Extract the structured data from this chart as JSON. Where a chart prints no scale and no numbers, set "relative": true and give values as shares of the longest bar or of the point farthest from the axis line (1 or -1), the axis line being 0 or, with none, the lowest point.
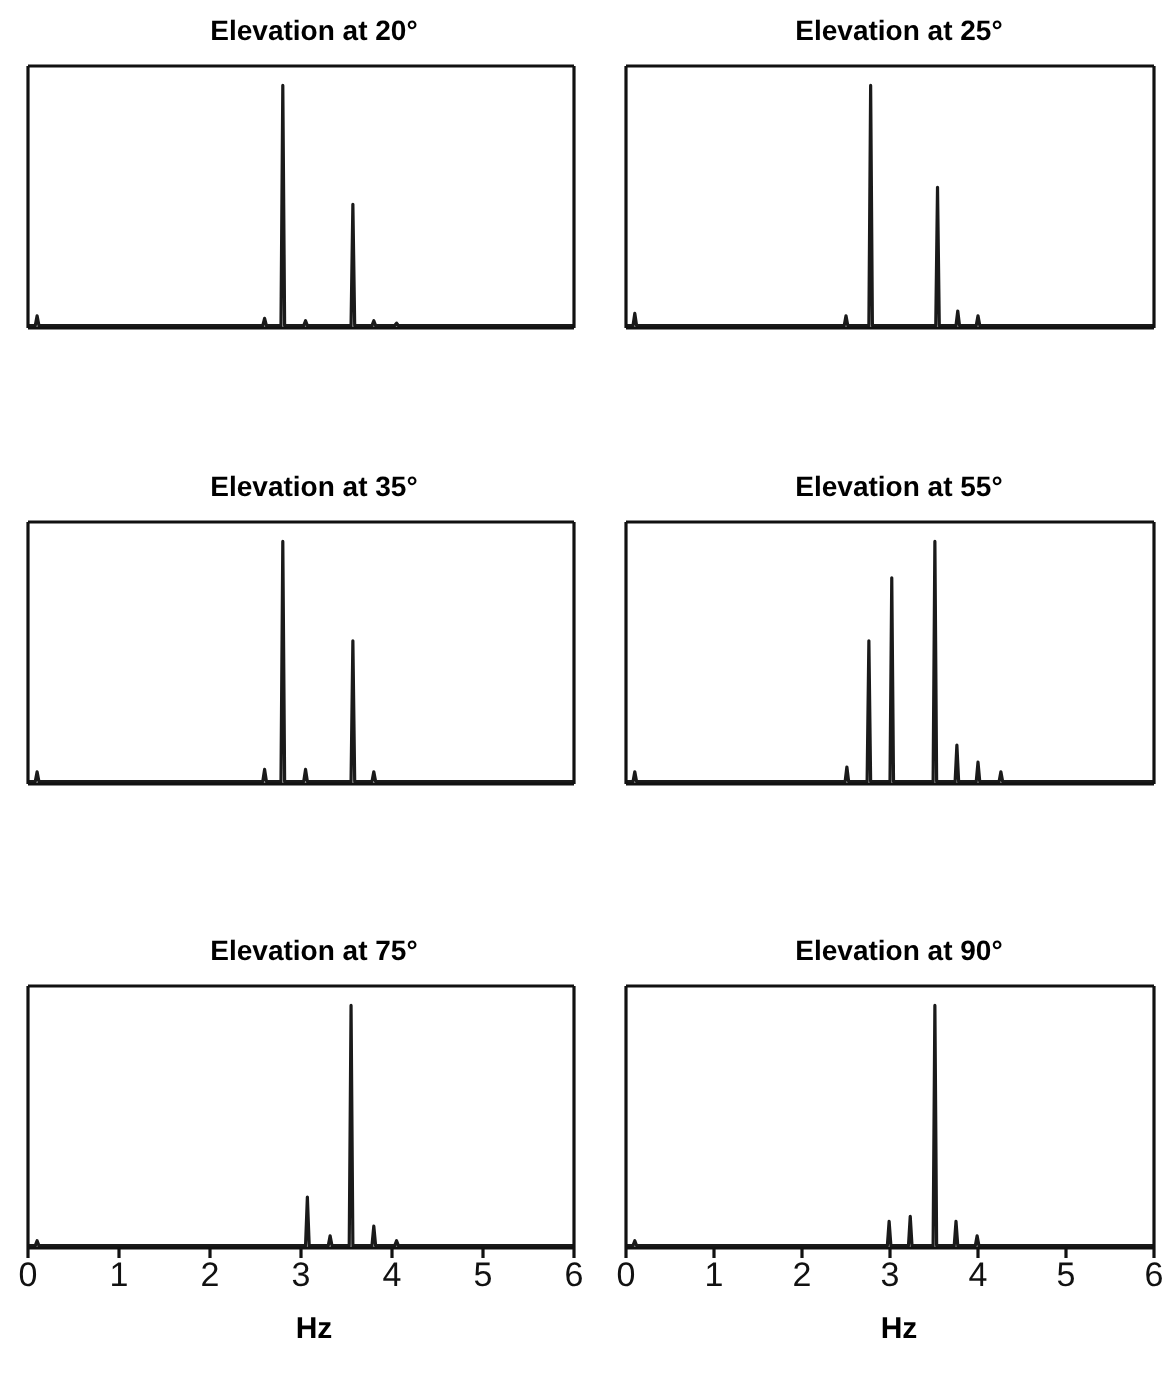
{
  "chart_data": [
    {
      "type": "line",
      "title": "Elevation at 20°",
      "relative": true,
      "xlim": [
        0,
        6
      ],
      "xticks": [
        0,
        1,
        2,
        3,
        4,
        5,
        6
      ],
      "tick_labels": false,
      "grid": false,
      "legend": false,
      "marker": "none",
      "series": [
        {
          "color": "#1a1a1a",
          "x": [
            0,
            0.08,
            0.1,
            0.12,
            2.58,
            2.6,
            2.62,
            2.78,
            2.8,
            2.82,
            3.03,
            3.05,
            3.07,
            3.55,
            3.57,
            3.59,
            3.78,
            3.8,
            3.82,
            4.03,
            4.05,
            4.07,
            6
          ],
          "values": [
            0.01,
            0.01,
            0.05,
            0.01,
            0.01,
            0.04,
            0.01,
            0.01,
            1,
            0.01,
            0.01,
            0.03,
            0.01,
            0.01,
            0.51,
            0.01,
            0.01,
            0.03,
            0.01,
            0.01,
            0.02,
            0.01,
            0.01
          ]
        }
      ]
    },
    {
      "type": "line",
      "title": "Elevation at 25°",
      "relative": true,
      "xlim": [
        0,
        6
      ],
      "xticks": [
        0,
        1,
        2,
        3,
        4,
        5,
        6
      ],
      "tick_labels": false,
      "grid": false,
      "legend": false,
      "marker": "none",
      "series": [
        {
          "color": "#1a1a1a",
          "x": [
            0,
            0.08,
            0.1,
            0.12,
            2.48,
            2.5,
            2.52,
            2.76,
            2.78,
            2.8,
            3.52,
            3.54,
            3.56,
            3.75,
            3.77,
            3.79,
            3.98,
            4.0,
            4.02,
            6
          ],
          "values": [
            0.01,
            0.01,
            0.06,
            0.01,
            0.01,
            0.05,
            0.01,
            0.01,
            1,
            0.01,
            0.01,
            0.58,
            0.01,
            0.01,
            0.07,
            0.01,
            0.01,
            0.05,
            0.01,
            0.01
          ]
        }
      ]
    },
    {
      "type": "line",
      "title": "Elevation at 35°",
      "relative": true,
      "xlim": [
        0,
        6
      ],
      "xticks": [
        0,
        1,
        2,
        3,
        4,
        5,
        6
      ],
      "tick_labels": false,
      "grid": false,
      "legend": false,
      "marker": "none",
      "series": [
        {
          "color": "#1a1a1a",
          "x": [
            0,
            0.08,
            0.1,
            0.12,
            2.58,
            2.6,
            2.62,
            2.78,
            2.8,
            2.82,
            3.03,
            3.05,
            3.07,
            3.55,
            3.57,
            3.59,
            3.78,
            3.8,
            3.82,
            6
          ],
          "values": [
            0.01,
            0.01,
            0.05,
            0.01,
            0.01,
            0.06,
            0.01,
            0.01,
            1,
            0.01,
            0.01,
            0.06,
            0.01,
            0.01,
            0.59,
            0.01,
            0.01,
            0.05,
            0.01,
            0.01
          ]
        }
      ]
    },
    {
      "type": "line",
      "title": "Elevation at 55°",
      "relative": true,
      "xlim": [
        0,
        6
      ],
      "xticks": [
        0,
        1,
        2,
        3,
        4,
        5,
        6
      ],
      "tick_labels": false,
      "grid": false,
      "legend": false,
      "marker": "none",
      "series": [
        {
          "color": "#1a1a1a",
          "x": [
            0,
            0.08,
            0.1,
            0.12,
            2.49,
            2.51,
            2.53,
            2.74,
            2.76,
            2.78,
            3.0,
            3.02,
            3.04,
            3.49,
            3.51,
            3.53,
            3.74,
            3.76,
            3.78,
            3.98,
            4.0,
            4.02,
            4.24,
            4.26,
            4.28,
            6
          ],
          "values": [
            0.01,
            0.01,
            0.05,
            0.01,
            0.01,
            0.07,
            0.01,
            0.01,
            0.59,
            0.01,
            0.01,
            0.85,
            0.01,
            0.01,
            1,
            0.01,
            0.01,
            0.16,
            0.01,
            0.01,
            0.09,
            0.01,
            0.01,
            0.05,
            0.01,
            0.01
          ]
        }
      ]
    },
    {
      "type": "line",
      "title": "Elevation at 75°",
      "xlabel": "Hz",
      "relative": true,
      "xlim": [
        0,
        6
      ],
      "xticks": [
        0,
        1,
        2,
        3,
        4,
        5,
        6
      ],
      "tick_labels": "x",
      "grid": false,
      "legend": false,
      "marker": "none",
      "series": [
        {
          "color": "#1a1a1a",
          "x": [
            0,
            0.08,
            0.1,
            0.12,
            3.05,
            3.07,
            3.09,
            3.3,
            3.32,
            3.34,
            3.53,
            3.55,
            3.57,
            3.78,
            3.8,
            3.82,
            4.03,
            4.05,
            4.07,
            6
          ],
          "values": [
            0.01,
            0.01,
            0.03,
            0.01,
            0.01,
            0.21,
            0.01,
            0.01,
            0.05,
            0.01,
            0.01,
            1,
            0.01,
            0.01,
            0.09,
            0.01,
            0.01,
            0.03,
            0.01,
            0.01
          ]
        }
      ]
    },
    {
      "type": "line",
      "title": "Elevation at 90°",
      "xlabel": "Hz",
      "relative": true,
      "xlim": [
        0,
        6
      ],
      "xticks": [
        0,
        1,
        2,
        3,
        4,
        5,
        6
      ],
      "tick_labels": "x",
      "grid": false,
      "legend": false,
      "marker": "none",
      "series": [
        {
          "color": "#1a1a1a",
          "x": [
            0,
            0.08,
            0.1,
            0.12,
            2.97,
            2.99,
            3.01,
            3.21,
            3.23,
            3.25,
            3.49,
            3.51,
            3.53,
            3.73,
            3.75,
            3.77,
            3.97,
            3.99,
            4.01,
            6
          ],
          "values": [
            0.01,
            0.01,
            0.03,
            0.01,
            0.01,
            0.11,
            0.01,
            0.01,
            0.13,
            0.01,
            0.01,
            1,
            0.01,
            0.01,
            0.11,
            0.01,
            0.01,
            0.05,
            0.01,
            0.01
          ]
        }
      ]
    }
  ]
}
